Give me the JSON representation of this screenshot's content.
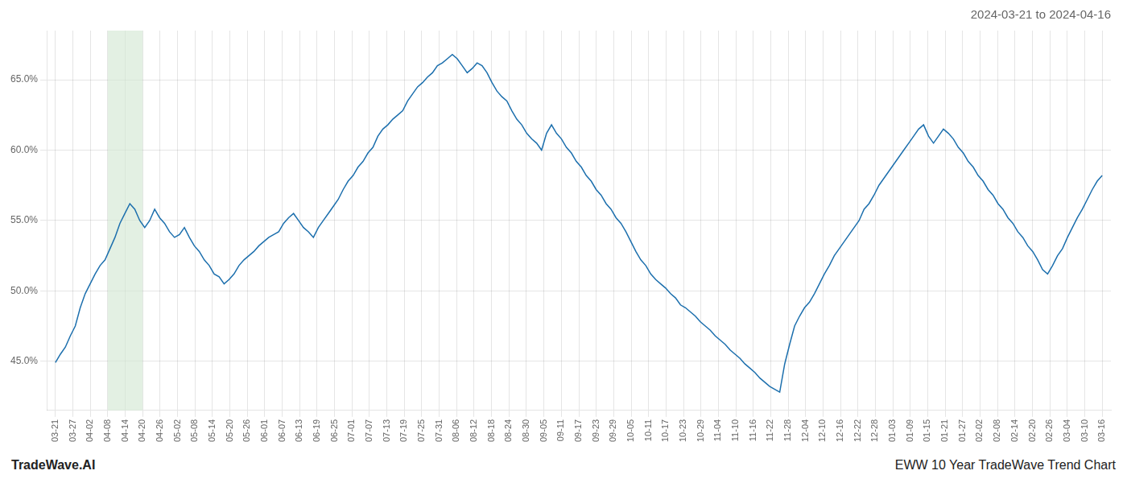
{
  "chart_data": {
    "type": "line",
    "title": "2024-03-21 to 2024-04-16",
    "annotations": [
      "TradeWave.AI",
      "EWW 10 Year TradeWave Trend Chart"
    ],
    "color": "#1c6fad",
    "grid": true,
    "highlight": {
      "start": 3,
      "end": 5,
      "color": "#d4e8d4"
    },
    "xlim": [
      -0.5,
      60.5
    ],
    "xticks": [
      {
        "value": 0,
        "label": "03-21"
      },
      {
        "value": 1,
        "label": "03-27"
      },
      {
        "value": 2,
        "label": "04-02"
      },
      {
        "value": 3,
        "label": "04-08"
      },
      {
        "value": 4,
        "label": "04-14"
      },
      {
        "value": 5,
        "label": "04-20"
      },
      {
        "value": 6,
        "label": "04-26"
      },
      {
        "value": 7,
        "label": "05-02"
      },
      {
        "value": 8,
        "label": "05-08"
      },
      {
        "value": 9,
        "label": "05-14"
      },
      {
        "value": 10,
        "label": "05-20"
      },
      {
        "value": 11,
        "label": "05-26"
      },
      {
        "value": 12,
        "label": "06-01"
      },
      {
        "value": 13,
        "label": "06-07"
      },
      {
        "value": 14,
        "label": "06-13"
      },
      {
        "value": 15,
        "label": "06-19"
      },
      {
        "value": 16,
        "label": "06-25"
      },
      {
        "value": 17,
        "label": "07-01"
      },
      {
        "value": 18,
        "label": "07-07"
      },
      {
        "value": 19,
        "label": "07-13"
      },
      {
        "value": 20,
        "label": "07-19"
      },
      {
        "value": 21,
        "label": "07-25"
      },
      {
        "value": 22,
        "label": "07-31"
      },
      {
        "value": 23,
        "label": "08-06"
      },
      {
        "value": 24,
        "label": "08-12"
      },
      {
        "value": 25,
        "label": "08-18"
      },
      {
        "value": 26,
        "label": "08-24"
      },
      {
        "value": 27,
        "label": "08-30"
      },
      {
        "value": 28,
        "label": "09-05"
      },
      {
        "value": 29,
        "label": "09-11"
      },
      {
        "value": 30,
        "label": "09-17"
      },
      {
        "value": 31,
        "label": "09-23"
      },
      {
        "value": 32,
        "label": "09-29"
      },
      {
        "value": 33,
        "label": "10-05"
      },
      {
        "value": 34,
        "label": "10-11"
      },
      {
        "value": 35,
        "label": "10-17"
      },
      {
        "value": 36,
        "label": "10-23"
      },
      {
        "value": 37,
        "label": "10-29"
      },
      {
        "value": 38,
        "label": "11-04"
      },
      {
        "value": 39,
        "label": "11-10"
      },
      {
        "value": 40,
        "label": "11-16"
      },
      {
        "value": 41,
        "label": "11-22"
      },
      {
        "value": 42,
        "label": "11-28"
      },
      {
        "value": 43,
        "label": "12-04"
      },
      {
        "value": 44,
        "label": "12-10"
      },
      {
        "value": 45,
        "label": "12-16"
      },
      {
        "value": 46,
        "label": "12-22"
      },
      {
        "value": 47,
        "label": "12-28"
      },
      {
        "value": 48,
        "label": "01-03"
      },
      {
        "value": 49,
        "label": "01-09"
      },
      {
        "value": 50,
        "label": "01-15"
      },
      {
        "value": 51,
        "label": "01-21"
      },
      {
        "value": 52,
        "label": "01-27"
      },
      {
        "value": 53,
        "label": "02-02"
      },
      {
        "value": 54,
        "label": "02-08"
      },
      {
        "value": 55,
        "label": "02-14"
      },
      {
        "value": 56,
        "label": "02-20"
      },
      {
        "value": 57,
        "label": "02-26"
      },
      {
        "value": 58,
        "label": "03-04"
      },
      {
        "value": 59,
        "label": "03-10"
      },
      {
        "value": 60,
        "label": "03-16"
      }
    ],
    "ylim": [
      0.415,
      0.685
    ],
    "yticks": [
      {
        "value": 0.45,
        "label": "45.0%"
      },
      {
        "value": 0.5,
        "label": "50.0%"
      },
      {
        "value": 0.55,
        "label": "55.0%"
      },
      {
        "value": 0.6,
        "label": "60.0%"
      },
      {
        "value": 0.65,
        "label": "65.0%"
      }
    ],
    "x": [
      0,
      0.2844,
      0.5687,
      0.8531,
      1.1374,
      1.4218,
      1.7062,
      1.9905,
      2.2749,
      2.5592,
      2.8436,
      3.128,
      3.4123,
      3.6967,
      3.981,
      4.2654,
      4.5498,
      4.8341,
      5.1185,
      5.4028,
      5.6872,
      5.9716,
      6.2559,
      6.5403,
      6.8246,
      7.109,
      7.3934,
      7.6777,
      7.9621,
      8.2464,
      8.5308,
      8.8152,
      9.0995,
      9.3839,
      9.6682,
      9.9526,
      10.237,
      10.5213,
      10.8057,
      11.09,
      11.3744,
      11.6588,
      11.9431,
      12.2275,
      12.5118,
      12.7962,
      13.0806,
      13.3649,
      13.6493,
      13.9336,
      14.218,
      14.5024,
      14.7867,
      15.0711,
      15.3555,
      15.6398,
      15.9242,
      16.2085,
      16.4929,
      16.7773,
      17.0616,
      17.346,
      17.6303,
      17.9147,
      18.1991,
      18.4834,
      18.7678,
      19.0521,
      19.3365,
      19.6209,
      19.9052,
      20.1896,
      20.4739,
      20.7583,
      21.0427,
      21.327,
      21.6114,
      21.8957,
      22.1801,
      22.4645,
      22.7488,
      23.0332,
      23.3175,
      23.6019,
      23.8863,
      24.1706,
      24.455,
      24.7393,
      25.0237,
      25.3081,
      25.5924,
      25.8768,
      26.1611,
      26.4455,
      26.7299,
      27.0142,
      27.2986,
      27.5829,
      27.8673,
      28.1517,
      28.436,
      28.7204,
      29.0047,
      29.2891,
      29.5735,
      29.8578,
      30.1422,
      30.4265,
      30.7109,
      30.9953,
      31.2796,
      31.564,
      31.8483,
      32.1327,
      32.4171,
      32.7014,
      32.9858,
      33.2701,
      33.5545,
      33.8389,
      34.1232,
      34.4076,
      34.6919,
      34.9763,
      35.2607,
      35.545,
      35.8294,
      36.1137,
      36.3981,
      36.6825,
      36.9668,
      37.2512,
      37.5355,
      37.8199,
      38.1043,
      38.3886,
      38.673,
      38.9573,
      39.2417,
      39.5261,
      39.8104,
      40.0948,
      40.3791,
      40.6635,
      40.9479,
      41.2322,
      41.5166,
      41.8009,
      42.0853,
      42.3697,
      42.654,
      42.9384,
      43.2227,
      43.5071,
      43.7915,
      44.0758,
      44.3602,
      44.6445,
      44.9289,
      45.2133,
      45.4976,
      45.782,
      46.0664,
      46.3507,
      46.6351,
      46.9194,
      47.2038,
      47.4882,
      47.7725,
      48.0569,
      48.3412,
      48.6256,
      48.91,
      49.1943,
      49.4787,
      49.763,
      50.0474,
      50.3318,
      50.6161,
      50.9005,
      51.1848,
      51.4692,
      51.7536,
      52.0379,
      52.3223,
      52.6066,
      52.891,
      53.1754,
      53.4597,
      53.7441,
      54.0284,
      54.3128,
      54.5972,
      54.8815,
      55.1659,
      55.4502,
      55.7346,
      56.019,
      56.3033,
      56.5877,
      56.872,
      57.1564,
      57.4408,
      57.7251,
      58.0095,
      58.2938,
      58.5782,
      58.8626,
      59.1469,
      59.4313,
      59.7156,
      60
    ],
    "values": [
      0.449,
      0.455,
      0.46,
      0.468,
      0.475,
      0.488,
      0.498,
      0.505,
      0.512,
      0.518,
      0.522,
      0.53,
      0.538,
      0.548,
      0.555,
      0.562,
      0.558,
      0.55,
      0.545,
      0.55,
      0.558,
      0.552,
      0.548,
      0.542,
      0.538,
      0.54,
      0.545,
      0.538,
      0.532,
      0.528,
      0.522,
      0.518,
      0.512,
      0.51,
      0.505,
      0.508,
      0.512,
      0.518,
      0.522,
      0.525,
      0.528,
      0.532,
      0.535,
      0.538,
      0.54,
      0.542,
      0.548,
      0.552,
      0.555,
      0.55,
      0.545,
      0.542,
      0.538,
      0.545,
      0.55,
      0.555,
      0.56,
      0.565,
      0.572,
      0.578,
      0.582,
      0.588,
      0.592,
      0.598,
      0.602,
      0.61,
      0.615,
      0.618,
      0.622,
      0.625,
      0.628,
      0.635,
      0.64,
      0.645,
      0.648,
      0.652,
      0.655,
      0.66,
      0.662,
      0.665,
      0.668,
      0.665,
      0.66,
      0.655,
      0.658,
      0.662,
      0.66,
      0.655,
      0.648,
      0.642,
      0.638,
      0.635,
      0.628,
      0.622,
      0.618,
      0.612,
      0.608,
      0.605,
      0.6,
      0.612,
      0.618,
      0.612,
      0.608,
      0.602,
      0.598,
      0.592,
      0.588,
      0.582,
      0.578,
      0.572,
      0.568,
      0.562,
      0.558,
      0.552,
      0.548,
      0.542,
      0.535,
      0.528,
      0.522,
      0.518,
      0.512,
      0.508,
      0.505,
      0.502,
      0.498,
      0.495,
      0.49,
      0.488,
      0.485,
      0.482,
      0.478,
      0.475,
      0.472,
      0.468,
      0.465,
      0.462,
      0.458,
      0.455,
      0.452,
      0.448,
      0.445,
      0.442,
      0.438,
      0.435,
      0.432,
      0.43,
      0.428,
      0.448,
      0.462,
      0.475,
      0.482,
      0.488,
      0.492,
      0.498,
      0.505,
      0.512,
      0.518,
      0.525,
      0.53,
      0.535,
      0.54,
      0.545,
      0.55,
      0.558,
      0.562,
      0.568,
      0.575,
      0.58,
      0.585,
      0.59,
      0.595,
      0.6,
      0.605,
      0.61,
      0.615,
      0.618,
      0.61,
      0.605,
      0.61,
      0.615,
      0.612,
      0.608,
      0.602,
      0.598,
      0.592,
      0.588,
      0.582,
      0.578,
      0.572,
      0.568,
      0.562,
      0.558,
      0.552,
      0.548,
      0.542,
      0.538,
      0.532,
      0.528,
      0.522,
      0.515,
      0.512,
      0.518,
      0.525,
      0.53,
      0.538,
      0.545,
      0.552,
      0.558,
      0.565,
      0.572,
      0.578,
      0.582
    ]
  }
}
